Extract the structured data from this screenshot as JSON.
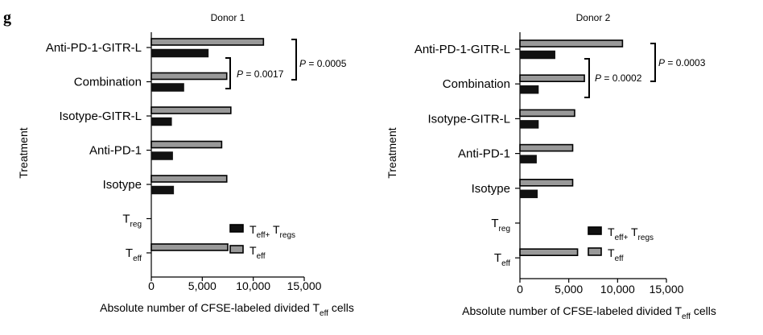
{
  "figure": {
    "panel_letter": "g",
    "legend": [
      {
        "name_main": "T",
        "name_sub": "eff+",
        "name_tail": " T",
        "name_tail_sub": "regs",
        "color": "#111111"
      },
      {
        "name_main": "T",
        "name_sub": "eff",
        "name_tail": "",
        "name_tail_sub": "",
        "color": "#999999"
      }
    ],
    "ylabel": "Treatment",
    "xlabel_main": "Absolute number of CFSE-labeled divided T",
    "xlabel_sub": "eff",
    "xlabel_tail": " cells"
  },
  "colors": {
    "teff_bar": "#999999",
    "cocult_bar": "#111111",
    "bar_stroke": "#000000"
  },
  "chart_data": [
    {
      "type": "bar",
      "orientation": "horizontal",
      "title": "Donor 1",
      "categories": [
        {
          "main": "Anti-PD-1-GITR-L",
          "sub": ""
        },
        {
          "main": "Combination",
          "sub": ""
        },
        {
          "main": "Isotype-GITR-L",
          "sub": ""
        },
        {
          "main": "Anti-PD-1",
          "sub": ""
        },
        {
          "main": "Isotype",
          "sub": ""
        },
        {
          "main": "T",
          "sub": "reg"
        },
        {
          "main": "T",
          "sub": "eff"
        }
      ],
      "series": [
        {
          "key": "teff",
          "values": [
            11000,
            7400,
            7800,
            6900,
            7400,
            null,
            7500
          ]
        },
        {
          "key": "cocult",
          "values": [
            5600,
            3200,
            2000,
            2100,
            2200,
            null,
            null
          ]
        }
      ],
      "xlim": [
        0,
        15000
      ],
      "xticks": [
        0,
        5000,
        10000,
        15000
      ],
      "xtick_labels": [
        "0",
        "5,000",
        "10,000",
        "15,000"
      ],
      "annotations": [
        {
          "text_italic": "P",
          "text": " = 0.0017",
          "from": 1,
          "to": 0
        },
        {
          "text_italic": "P",
          "text": " = 0.0005",
          "from": 0,
          "to": 0
        }
      ]
    },
    {
      "type": "bar",
      "orientation": "horizontal",
      "title": "Donor 2",
      "categories": [
        {
          "main": "Anti-PD-1-GITR-L",
          "sub": ""
        },
        {
          "main": "Combination",
          "sub": ""
        },
        {
          "main": "Isotype-GITR-L",
          "sub": ""
        },
        {
          "main": "Anti-PD-1",
          "sub": ""
        },
        {
          "main": "Isotype",
          "sub": ""
        },
        {
          "main": "T",
          "sub": "reg"
        },
        {
          "main": "T",
          "sub": "eff"
        }
      ],
      "series": [
        {
          "key": "teff",
          "values": [
            10500,
            6600,
            5600,
            5400,
            5400,
            null,
            5900
          ]
        },
        {
          "key": "cocult",
          "values": [
            3600,
            1900,
            1900,
            1700,
            1800,
            null,
            null
          ]
        }
      ],
      "xlim": [
        0,
        15000
      ],
      "xticks": [
        0,
        5000,
        10000,
        15000
      ],
      "xtick_labels": [
        "0",
        "5,000",
        "10,000",
        "15,000"
      ],
      "annotations": [
        {
          "text_italic": "P",
          "text": " = 0.0002",
          "from": 1,
          "to": 0
        },
        {
          "text_italic": "P",
          "text": " = 0.0003",
          "from": 0,
          "to": 0
        }
      ]
    }
  ]
}
